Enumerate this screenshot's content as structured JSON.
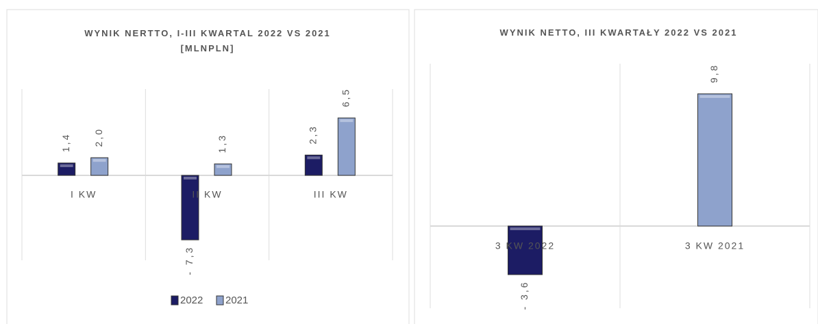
{
  "chart_data": [
    {
      "type": "bar",
      "title": "WYNIK NERTTO, I-III KWARTAL 2022 VS 2021 [MLNPLN]",
      "categories": [
        "I KW",
        "II KW",
        "III KW"
      ],
      "series": [
        {
          "name": "2022",
          "color": "#1c1c64",
          "values": [
            1.4,
            -7.3,
            2.3
          ],
          "value_labels": [
            "1,4",
            "- 7,3",
            "2,3"
          ]
        },
        {
          "name": "2021",
          "color": "#8ea2cc",
          "values": [
            2.0,
            1.3,
            6.5
          ],
          "value_labels": [
            "2,0",
            "1,3",
            "6,5"
          ]
        }
      ],
      "legend": "bottom"
    },
    {
      "type": "bar",
      "title": "WYNIK NETTO, III KWARTAŁY 2022 VS 2021",
      "categories": [
        "3 KW 2022",
        "3 KW 2021"
      ],
      "values": [
        -3.6,
        9.8
      ],
      "value_labels": [
        "- 3,6",
        "9,8"
      ],
      "colors": [
        "#1c1c64",
        "#8ea2cc"
      ]
    }
  ]
}
